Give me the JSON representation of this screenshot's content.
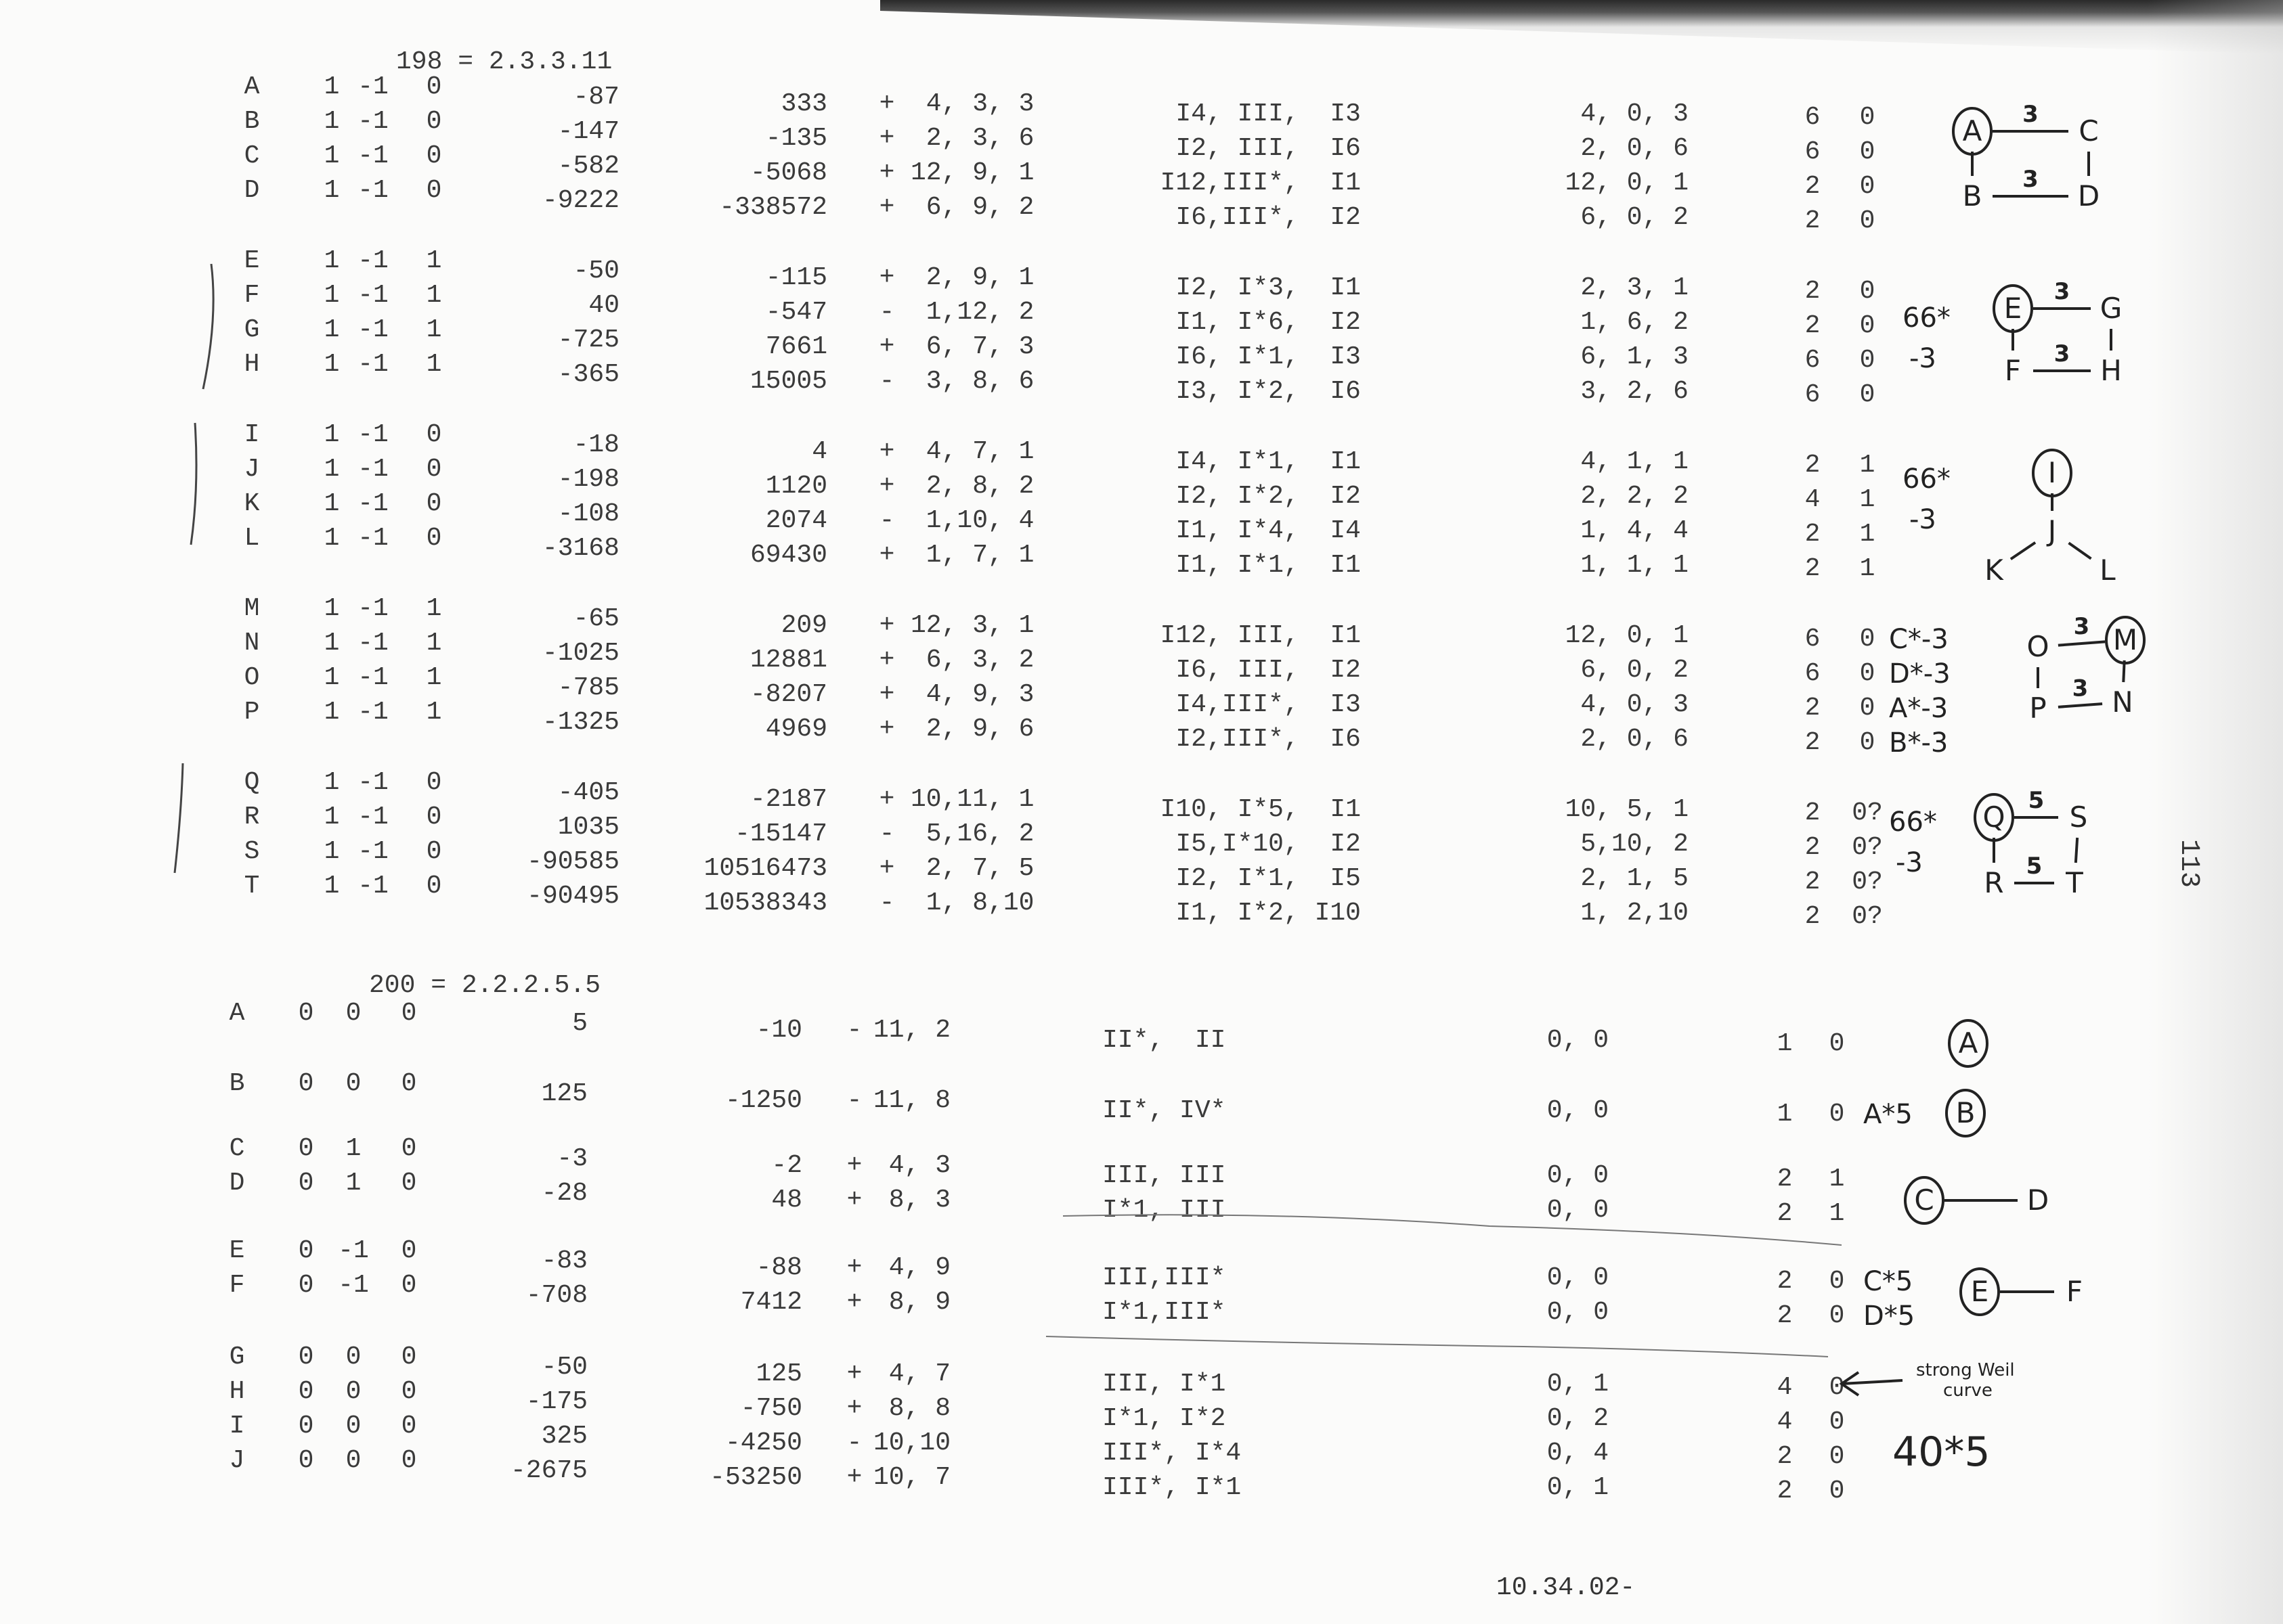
{
  "page_number": "113",
  "footer": "10.34.02-",
  "sections": [
    {
      "header": "198 = 2.3.3.11",
      "groups": [
        {
          "rows": [
            {
              "label": "A",
              "a": [
                "1",
                "-1",
                "0"
              ],
              "c4": "-87",
              "c6": "333",
              "sign": "+",
              "ext": " 4, 3, 3",
              "kodaira": "I4, III,  I3",
              "ord": "4, 0, 3",
              "tors": [
                "6",
                "0"
              ],
              "note": ""
            },
            {
              "label": "B",
              "a": [
                "1",
                "-1",
                "0"
              ],
              "c4": "-147",
              "c6": "-135",
              "sign": "+",
              "ext": " 2, 3, 6",
              "kodaira": "I2, III,  I6",
              "ord": "2, 0, 6",
              "tors": [
                "6",
                "0"
              ],
              "note": ""
            },
            {
              "label": "C",
              "a": [
                "1",
                "-1",
                "0"
              ],
              "c4": "-582",
              "c6": "-5068",
              "sign": "+",
              "ext": "12, 9, 1",
              "kodaira": "I12,III*,  I1",
              "ord": "12, 0, 1",
              "tors": [
                "2",
                "0"
              ],
              "note": ""
            },
            {
              "label": "D",
              "a": [
                "1",
                "-1",
                "0"
              ],
              "c4": "-9222",
              "c6": "-338572",
              "sign": "+",
              "ext": " 6, 9, 2",
              "kodaira": "I6,III*,  I2",
              "ord": "6, 0, 2",
              "tors": [
                "2",
                "0"
              ],
              "note": ""
            }
          ],
          "notes": []
        },
        {
          "rows": [
            {
              "label": "E",
              "a": [
                "1",
                "-1",
                "1"
              ],
              "c4": "-50",
              "c6": "-115",
              "sign": "+",
              "ext": " 2, 9, 1",
              "kodaira": "I2, I*3,  I1",
              "ord": "2, 3, 1",
              "tors": [
                "2",
                "0"
              ],
              "note": ""
            },
            {
              "label": "F",
              "a": [
                "1",
                "-1",
                "1"
              ],
              "c4": "40",
              "c6": "-547",
              "sign": "-",
              "ext": " 1,12, 2",
              "kodaira": "I1, I*6,  I2",
              "ord": "1, 6, 2",
              "tors": [
                "2",
                "0"
              ],
              "note": ""
            },
            {
              "label": "G",
              "a": [
                "1",
                "-1",
                "1"
              ],
              "c4": "-725",
              "c6": "7661",
              "sign": "+",
              "ext": " 6, 7, 3",
              "kodaira": "I6, I*1,  I3",
              "ord": "6, 1, 3",
              "tors": [
                "6",
                "0"
              ],
              "note": ""
            },
            {
              "label": "H",
              "a": [
                "1",
                "-1",
                "1"
              ],
              "c4": "-365",
              "c6": "15005",
              "sign": "-",
              "ext": " 3, 8, 6",
              "kodaira": "I3, I*2,  I6",
              "ord": "3, 2, 6",
              "tors": [
                "6",
                "0"
              ],
              "note": ""
            }
          ],
          "notes": [
            "66*",
            "-3"
          ]
        },
        {
          "rows": [
            {
              "label": "I",
              "a": [
                "1",
                "-1",
                "0"
              ],
              "c4": "-18",
              "c6": "4",
              "sign": "+",
              "ext": " 4, 7, 1",
              "kodaira": "I4, I*1,  I1",
              "ord": "4, 1, 1",
              "tors": [
                "2",
                "1"
              ],
              "note": ""
            },
            {
              "label": "J",
              "a": [
                "1",
                "-1",
                "0"
              ],
              "c4": "-198",
              "c6": "1120",
              "sign": "+",
              "ext": " 2, 8, 2",
              "kodaira": "I2, I*2,  I2",
              "ord": "2, 2, 2",
              "tors": [
                "4",
                "1"
              ],
              "note": ""
            },
            {
              "label": "K",
              "a": [
                "1",
                "-1",
                "0"
              ],
              "c4": "-108",
              "c6": "2074",
              "sign": "-",
              "ext": " 1,10, 4",
              "kodaira": "I1, I*4,  I4",
              "ord": "1, 4, 4",
              "tors": [
                "2",
                "1"
              ],
              "note": ""
            },
            {
              "label": "L",
              "a": [
                "1",
                "-1",
                "0"
              ],
              "c4": "-3168",
              "c6": "69430",
              "sign": "+",
              "ext": " 1, 7, 1",
              "kodaira": "I1, I*1,  I1",
              "ord": "1, 1, 1",
              "tors": [
                "2",
                "1"
              ],
              "note": ""
            }
          ],
          "notes": [
            "66*",
            "-3"
          ]
        },
        {
          "rows": [
            {
              "label": "M",
              "a": [
                "1",
                "-1",
                "1"
              ],
              "c4": "-65",
              "c6": "209",
              "sign": "+",
              "ext": "12, 3, 1",
              "kodaira": "I12, III,  I1",
              "ord": "12, 0, 1",
              "tors": [
                "6",
                "0"
              ],
              "note": "C*-3"
            },
            {
              "label": "N",
              "a": [
                "1",
                "-1",
                "1"
              ],
              "c4": "-1025",
              "c6": "12881",
              "sign": "+",
              "ext": " 6, 3, 2",
              "kodaira": "I6, III,  I2",
              "ord": "6, 0, 2",
              "tors": [
                "6",
                "0"
              ],
              "note": "D*-3"
            },
            {
              "label": "O",
              "a": [
                "1",
                "-1",
                "1"
              ],
              "c4": "-785",
              "c6": "-8207",
              "sign": "+",
              "ext": " 4, 9, 3",
              "kodaira": "I4,III*,  I3",
              "ord": "4, 0, 3",
              "tors": [
                "2",
                "0"
              ],
              "note": "A*-3"
            },
            {
              "label": "P",
              "a": [
                "1",
                "-1",
                "1"
              ],
              "c4": "-1325",
              "c6": "4969",
              "sign": "+",
              "ext": " 2, 9, 6",
              "kodaira": "I2,III*,  I6",
              "ord": "2, 0, 6",
              "tors": [
                "2",
                "0"
              ],
              "note": "B*-3"
            }
          ],
          "notes": []
        },
        {
          "rows": [
            {
              "label": "Q",
              "a": [
                "1",
                "-1",
                "0"
              ],
              "c4": "-405",
              "c6": "-2187",
              "sign": "+",
              "ext": "10,11, 1",
              "kodaira": "I10, I*5,  I1",
              "ord": "10, 5, 1",
              "tors": [
                "2",
                "0?"
              ],
              "note": ""
            },
            {
              "label": "R",
              "a": [
                "1",
                "-1",
                "0"
              ],
              "c4": "1035",
              "c6": "-15147",
              "sign": "-",
              "ext": " 5,16, 2",
              "kodaira": "I5,I*10,  I2",
              "ord": "5,10, 2",
              "tors": [
                "2",
                "0?"
              ],
              "note": ""
            },
            {
              "label": "S",
              "a": [
                "1",
                "-1",
                "0"
              ],
              "c4": "-90585",
              "c6": "10516473",
              "sign": "+",
              "ext": " 2, 7, 5",
              "kodaira": "I2, I*1,  I5",
              "ord": "2, 1, 5",
              "tors": [
                "2",
                "0?"
              ],
              "note": ""
            },
            {
              "label": "T",
              "a": [
                "1",
                "-1",
                "0"
              ],
              "c4": "-90495",
              "c6": "10538343",
              "sign": "-",
              "ext": " 1, 8,10",
              "kodaira": "I1, I*2, I10",
              "ord": "1, 2,10",
              "tors": [
                "2",
                "0?"
              ],
              "note": ""
            }
          ],
          "notes": [
            "66*",
            "-3"
          ]
        }
      ]
    },
    {
      "header": "200 = 2.2.2.5.5",
      "groups": [
        {
          "rows": [
            {
              "label": "A",
              "a": [
                "0",
                "0",
                "0"
              ],
              "c4": "5",
              "c6": "-10",
              "sign": "-",
              "ext": "11, 2",
              "kodaira": "II*,  II",
              "ord": "0, 0",
              "tors": [
                "1",
                "0"
              ],
              "note": ""
            }
          ],
          "notes": []
        },
        {
          "rows": [
            {
              "label": "B",
              "a": [
                "0",
                "0",
                "0"
              ],
              "c4": "125",
              "c6": "-1250",
              "sign": "-",
              "ext": "11, 8",
              "kodaira": "II*, IV*",
              "ord": "0, 0",
              "tors": [
                "1",
                "0"
              ],
              "note": "A*5"
            }
          ],
          "notes": []
        },
        {
          "rows": [
            {
              "label": "C",
              "a": [
                "0",
                "1",
                "0"
              ],
              "c4": "-3",
              "c6": "-2",
              "sign": "+",
              "ext": " 4, 3",
              "kodaira": "III, III",
              "ord": "0, 0",
              "tors": [
                "2",
                "1"
              ],
              "note": ""
            },
            {
              "label": "D",
              "a": [
                "0",
                "1",
                "0"
              ],
              "c4": "-28",
              "c6": "48",
              "sign": "+",
              "ext": " 8, 3",
              "kodaira": "I*1, III",
              "ord": "0, 0",
              "tors": [
                "2",
                "1"
              ],
              "note": ""
            }
          ],
          "notes": []
        },
        {
          "rows": [
            {
              "label": "E",
              "a": [
                "0",
                "-1",
                "0"
              ],
              "c4": "-83",
              "c6": "-88",
              "sign": "+",
              "ext": " 4, 9",
              "kodaira": "III,III*",
              "ord": "0, 0",
              "tors": [
                "2",
                "0"
              ],
              "note": "C*5"
            },
            {
              "label": "F",
              "a": [
                "0",
                "-1",
                "0"
              ],
              "c4": "-708",
              "c6": "7412",
              "sign": "+",
              "ext": " 8, 9",
              "kodaira": "I*1,III*",
              "ord": "0, 0",
              "tors": [
                "2",
                "0"
              ],
              "note": "D*5"
            }
          ],
          "notes": []
        },
        {
          "rows": [
            {
              "label": "G",
              "a": [
                "0",
                "0",
                "0"
              ],
              "c4": "-50",
              "c6": "125",
              "sign": "+",
              "ext": " 4, 7",
              "kodaira": "III, I*1",
              "ord": "0, 1",
              "tors": [
                "4",
                "0"
              ],
              "note": ""
            },
            {
              "label": "H",
              "a": [
                "0",
                "0",
                "0"
              ],
              "c4": "-175",
              "c6": "-750",
              "sign": "+",
              "ext": " 8, 8",
              "kodaira": "I*1, I*2",
              "ord": "0, 2",
              "tors": [
                "4",
                "0"
              ],
              "note": ""
            },
            {
              "label": "I",
              "a": [
                "0",
                "0",
                "0"
              ],
              "c4": "325",
              "c6": "-4250",
              "sign": "-",
              "ext": "10,10",
              "kodaira": "III*, I*4",
              "ord": "0, 4",
              "tors": [
                "2",
                "0"
              ],
              "note": ""
            },
            {
              "label": "J",
              "a": [
                "0",
                "0",
                "0"
              ],
              "c4": "-2675",
              "c6": "-53250",
              "sign": "+",
              "ext": "10, 7",
              "kodaira": "III*, I*1",
              "ord": "0, 1",
              "tors": [
                "2",
                "0"
              ],
              "note": ""
            }
          ],
          "notes": [
            "40*5"
          ]
        }
      ]
    }
  ],
  "strong_weil_note": [
    "strong Weil",
    "curve"
  ],
  "diagrams": [
    {
      "nodes": [
        {
          "label": "A",
          "circled": true
        },
        {
          "label": "C"
        },
        {
          "label": "B"
        },
        {
          "label": "D"
        }
      ],
      "edges": [
        {
          "from": 0,
          "to": 1,
          "label": "3"
        },
        {
          "from": 2,
          "to": 3,
          "label": "3"
        },
        {
          "from": 0,
          "to": 2,
          "label": ""
        },
        {
          "from": 1,
          "to": 3,
          "label": ""
        }
      ]
    },
    {
      "nodes": [
        {
          "label": "E",
          "circled": true
        },
        {
          "label": "G"
        },
        {
          "label": "F"
        },
        {
          "label": "H"
        }
      ],
      "edges": [
        {
          "from": 0,
          "to": 1,
          "label": "3"
        },
        {
          "from": 2,
          "to": 3,
          "label": "3"
        },
        {
          "from": 0,
          "to": 2,
          "label": ""
        },
        {
          "from": 1,
          "to": 3,
          "label": ""
        }
      ]
    },
    {
      "nodes": [
        {
          "label": "I",
          "circled": true
        },
        {
          "label": "J"
        },
        {
          "label": "K"
        },
        {
          "label": "L"
        }
      ],
      "edges": [
        {
          "from": 0,
          "to": 1,
          "label": ""
        },
        {
          "from": 1,
          "to": 2,
          "label": ""
        },
        {
          "from": 1,
          "to": 3,
          "label": ""
        }
      ]
    },
    {
      "nodes": [
        {
          "label": "M",
          "circled": true
        },
        {
          "label": "O"
        },
        {
          "label": "P"
        },
        {
          "label": "N"
        }
      ],
      "edges": [
        {
          "from": 1,
          "to": 0,
          "label": "3"
        },
        {
          "from": 2,
          "to": 3,
          "label": "3"
        },
        {
          "from": 1,
          "to": 2,
          "label": ""
        },
        {
          "from": 0,
          "to": 3,
          "label": ""
        }
      ]
    },
    {
      "nodes": [
        {
          "label": "Q",
          "circled": true
        },
        {
          "label": "S"
        },
        {
          "label": "R"
        },
        {
          "label": "T"
        }
      ],
      "edges": [
        {
          "from": 0,
          "to": 1,
          "label": "5"
        },
        {
          "from": 2,
          "to": 3,
          "label": "5"
        },
        {
          "from": 0,
          "to": 2,
          "label": ""
        },
        {
          "from": 1,
          "to": 3,
          "label": ""
        }
      ]
    },
    {
      "nodes": [
        {
          "label": "A",
          "circled": true
        }
      ],
      "edges": []
    },
    {
      "nodes": [
        {
          "label": "B",
          "circled": true
        }
      ],
      "edges": []
    },
    {
      "nodes": [
        {
          "label": "C",
          "circled": true
        },
        {
          "label": "D"
        }
      ],
      "edges": [
        {
          "from": 0,
          "to": 1,
          "label": ""
        }
      ]
    },
    {
      "nodes": [
        {
          "label": "E",
          "circled": true
        },
        {
          "label": "F"
        }
      ],
      "edges": [
        {
          "from": 0,
          "to": 1,
          "label": ""
        }
      ]
    }
  ]
}
